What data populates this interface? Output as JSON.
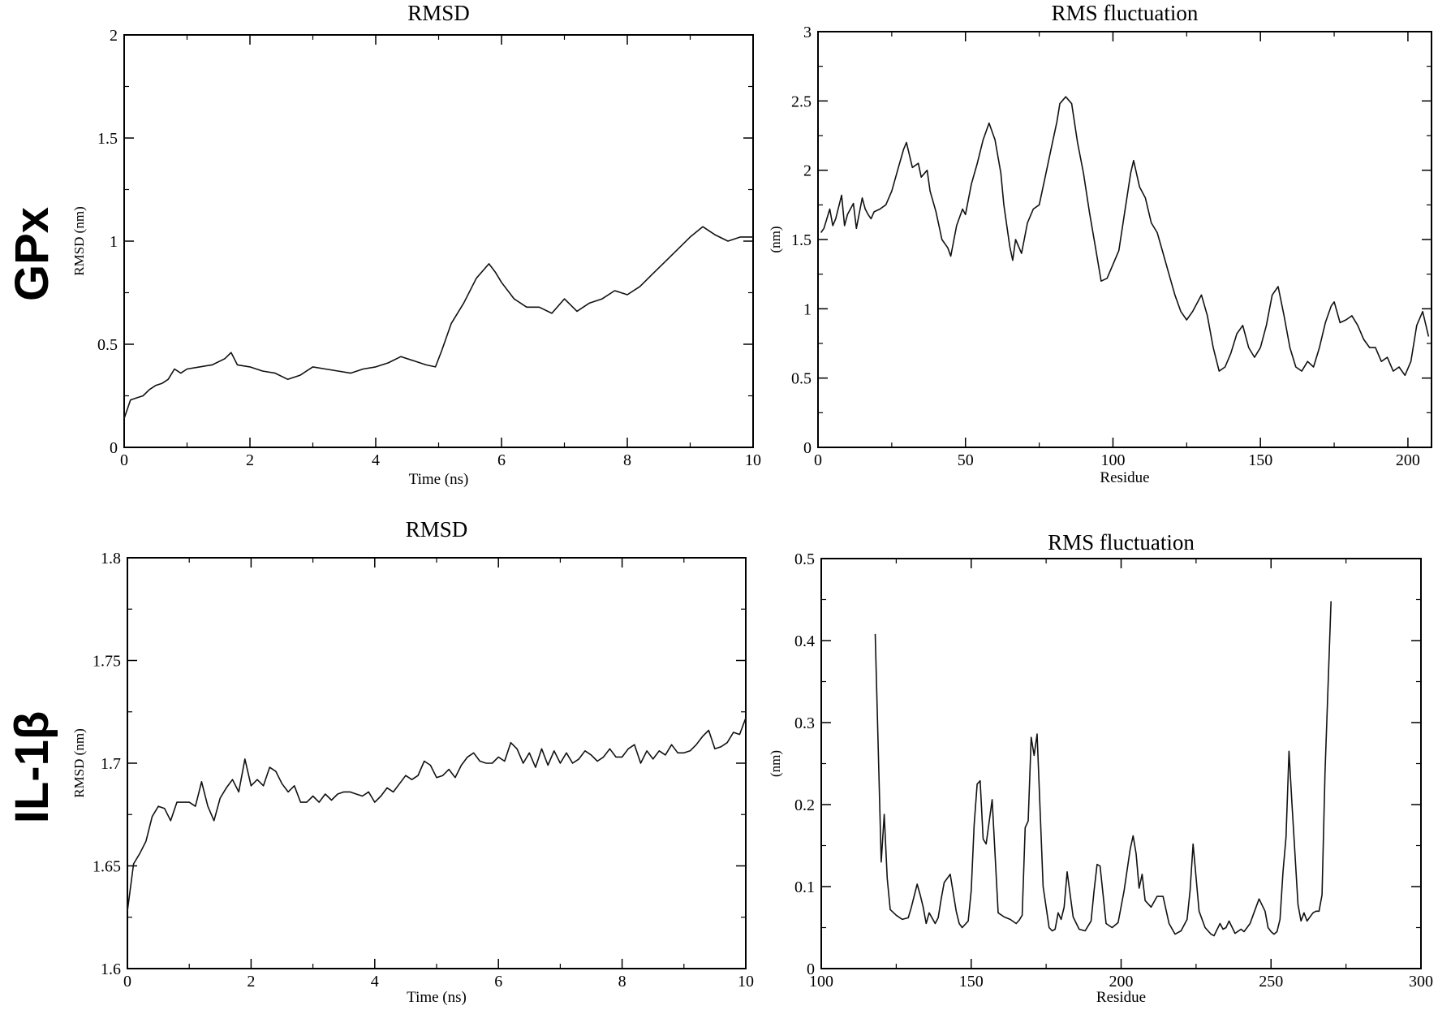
{
  "row_labels": [
    "GPx",
    "IL-1β"
  ],
  "chart_data": [
    {
      "type": "line",
      "title": "RMSD",
      "xlabel": "Time (ns)",
      "ylabel": "RMSD (nm)",
      "xlim": [
        0,
        10
      ],
      "ylim": [
        0,
        2
      ],
      "xticks": [
        0,
        2,
        4,
        6,
        8,
        10
      ],
      "yticks": [
        0,
        0.5,
        1,
        1.5,
        2
      ],
      "tick_labels_x": [
        "0",
        "2",
        "4",
        "6",
        "8",
        "10"
      ],
      "tick_labels_y": [
        "0",
        "0.5",
        "1",
        "1.5",
        "2"
      ],
      "grid": false,
      "series": [
        {
          "x": [
            0,
            0.1,
            0.2,
            0.3,
            0.4,
            0.5,
            0.6,
            0.7,
            0.8,
            0.9,
            1.0,
            1.2,
            1.4,
            1.6,
            1.7,
            1.8,
            2.0,
            2.2,
            2.4,
            2.6,
            2.8,
            3.0,
            3.2,
            3.4,
            3.6,
            3.8,
            4.0,
            4.2,
            4.4,
            4.6,
            4.8,
            4.95,
            5.05,
            5.2,
            5.4,
            5.6,
            5.8,
            5.9,
            6.0,
            6.2,
            6.4,
            6.6,
            6.8,
            7.0,
            7.2,
            7.4,
            7.6,
            7.8,
            8.0,
            8.2,
            8.4,
            8.6,
            8.8,
            9.0,
            9.2,
            9.4,
            9.6,
            9.8,
            10.0
          ],
          "y": [
            0.14,
            0.23,
            0.24,
            0.25,
            0.28,
            0.3,
            0.31,
            0.33,
            0.38,
            0.36,
            0.38,
            0.39,
            0.4,
            0.43,
            0.46,
            0.4,
            0.39,
            0.37,
            0.36,
            0.33,
            0.35,
            0.39,
            0.38,
            0.37,
            0.36,
            0.38,
            0.39,
            0.41,
            0.44,
            0.42,
            0.4,
            0.39,
            0.47,
            0.6,
            0.7,
            0.82,
            0.89,
            0.85,
            0.8,
            0.72,
            0.68,
            0.68,
            0.65,
            0.72,
            0.66,
            0.7,
            0.72,
            0.76,
            0.74,
            0.78,
            0.84,
            0.9,
            0.96,
            1.02,
            1.07,
            1.03,
            1.0,
            1.02,
            1.02
          ]
        }
      ]
    },
    {
      "type": "line",
      "title": "RMS fluctuation",
      "xlabel": "Residue",
      "ylabel": "(nm)",
      "xlim": [
        0,
        208
      ],
      "ylim": [
        0,
        3
      ],
      "xticks": [
        0,
        50,
        100,
        150,
        200
      ],
      "yticks": [
        0,
        0.5,
        1,
        1.5,
        2,
        2.5,
        3
      ],
      "tick_labels_x": [
        "0",
        "50",
        "100",
        "150",
        "200"
      ],
      "tick_labels_y": [
        "0",
        "0.5",
        "1",
        "1.5",
        "2",
        "2.5",
        "3"
      ],
      "grid": false,
      "series": [
        {
          "x": [
            1,
            2,
            4,
            5,
            6,
            8,
            9,
            10,
            12,
            13,
            15,
            16,
            17,
            18,
            19,
            21,
            23,
            25,
            27,
            29,
            30,
            32,
            34,
            35,
            37,
            38,
            40,
            42,
            44,
            45,
            47,
            49,
            50,
            52,
            54,
            56,
            58,
            60,
            62,
            63,
            65,
            66,
            67,
            69,
            71,
            73,
            75,
            77,
            79,
            81,
            82,
            84,
            86,
            88,
            90,
            92,
            94,
            96,
            98,
            100,
            102,
            104,
            106,
            107,
            109,
            111,
            113,
            115,
            117,
            119,
            121,
            123,
            125,
            127,
            130,
            132,
            134,
            136,
            138,
            140,
            142,
            144,
            146,
            148,
            150,
            152,
            154,
            156,
            158,
            160,
            162,
            164,
            166,
            168,
            170,
            172,
            174,
            175,
            177,
            179,
            181,
            183,
            185,
            187,
            189,
            191,
            193,
            195,
            197,
            199,
            201,
            203,
            205,
            207
          ],
          "y": [
            1.55,
            1.58,
            1.72,
            1.6,
            1.65,
            1.82,
            1.6,
            1.68,
            1.76,
            1.58,
            1.8,
            1.72,
            1.68,
            1.65,
            1.7,
            1.72,
            1.75,
            1.85,
            2.0,
            2.15,
            2.2,
            2.02,
            2.05,
            1.95,
            2.0,
            1.85,
            1.7,
            1.5,
            1.44,
            1.38,
            1.6,
            1.72,
            1.68,
            1.9,
            2.05,
            2.22,
            2.34,
            2.22,
            1.98,
            1.75,
            1.45,
            1.35,
            1.5,
            1.4,
            1.62,
            1.72,
            1.75,
            1.95,
            2.15,
            2.35,
            2.48,
            2.53,
            2.48,
            2.2,
            1.98,
            1.7,
            1.45,
            1.2,
            1.22,
            1.32,
            1.42,
            1.7,
            1.98,
            2.07,
            1.88,
            1.8,
            1.62,
            1.55,
            1.4,
            1.25,
            1.1,
            0.98,
            0.92,
            0.98,
            1.1,
            0.95,
            0.72,
            0.55,
            0.58,
            0.68,
            0.82,
            0.88,
            0.72,
            0.65,
            0.72,
            0.88,
            1.1,
            1.16,
            0.95,
            0.72,
            0.58,
            0.55,
            0.62,
            0.58,
            0.72,
            0.9,
            1.02,
            1.05,
            0.9,
            0.92,
            0.95,
            0.88,
            0.78,
            0.72,
            0.72,
            0.62,
            0.65,
            0.55,
            0.58,
            0.52,
            0.62,
            0.88,
            0.98,
            0.8
          ]
        }
      ]
    },
    {
      "type": "line",
      "title": "RMSD",
      "xlabel": "Time (ns)",
      "ylabel": "RMSD (nm)",
      "xlim": [
        0,
        10
      ],
      "ylim": [
        1.6,
        1.8
      ],
      "xticks": [
        0,
        2,
        4,
        6,
        8,
        10
      ],
      "yticks": [
        1.6,
        1.65,
        1.7,
        1.75,
        1.8
      ],
      "tick_labels_x": [
        "0",
        "2",
        "4",
        "6",
        "8",
        "10"
      ],
      "tick_labels_y": [
        "1.6",
        "1.65",
        "1.7",
        "1.75",
        "1.8"
      ],
      "grid": false,
      "series": [
        {
          "x": [
            0,
            0.1,
            0.2,
            0.3,
            0.4,
            0.5,
            0.6,
            0.7,
            0.8,
            0.9,
            1.0,
            1.1,
            1.2,
            1.3,
            1.4,
            1.5,
            1.6,
            1.7,
            1.8,
            1.9,
            2.0,
            2.1,
            2.2,
            2.3,
            2.4,
            2.5,
            2.6,
            2.7,
            2.8,
            2.9,
            3.0,
            3.1,
            3.2,
            3.3,
            3.4,
            3.5,
            3.6,
            3.7,
            3.8,
            3.9,
            4.0,
            4.1,
            4.2,
            4.3,
            4.4,
            4.5,
            4.6,
            4.7,
            4.8,
            4.9,
            5.0,
            5.1,
            5.2,
            5.3,
            5.4,
            5.5,
            5.6,
            5.7,
            5.8,
            5.9,
            6.0,
            6.1,
            6.2,
            6.3,
            6.4,
            6.5,
            6.6,
            6.7,
            6.8,
            6.9,
            7.0,
            7.1,
            7.2,
            7.3,
            7.4,
            7.5,
            7.6,
            7.7,
            7.8,
            7.9,
            8.0,
            8.1,
            8.2,
            8.3,
            8.4,
            8.5,
            8.6,
            8.7,
            8.8,
            8.9,
            9.0,
            9.1,
            9.2,
            9.3,
            9.4,
            9.5,
            9.6,
            9.7,
            9.8,
            9.9,
            10.0
          ],
          "y": [
            1.628,
            1.651,
            1.656,
            1.662,
            1.674,
            1.679,
            1.678,
            1.672,
            1.681,
            1.681,
            1.681,
            1.679,
            1.691,
            1.679,
            1.672,
            1.683,
            1.688,
            1.692,
            1.686,
            1.702,
            1.689,
            1.692,
            1.689,
            1.698,
            1.696,
            1.69,
            1.686,
            1.689,
            1.681,
            1.681,
            1.684,
            1.681,
            1.685,
            1.682,
            1.685,
            1.686,
            1.686,
            1.685,
            1.684,
            1.686,
            1.681,
            1.684,
            1.688,
            1.686,
            1.69,
            1.694,
            1.692,
            1.694,
            1.701,
            1.699,
            1.693,
            1.694,
            1.697,
            1.693,
            1.699,
            1.703,
            1.705,
            1.701,
            1.7,
            1.7,
            1.703,
            1.701,
            1.71,
            1.707,
            1.7,
            1.705,
            1.698,
            1.707,
            1.699,
            1.706,
            1.7,
            1.705,
            1.7,
            1.702,
            1.706,
            1.704,
            1.701,
            1.703,
            1.707,
            1.703,
            1.703,
            1.707,
            1.709,
            1.7,
            1.706,
            1.702,
            1.706,
            1.704,
            1.709,
            1.705,
            1.705,
            1.706,
            1.709,
            1.713,
            1.716,
            1.707,
            1.708,
            1.71,
            1.715,
            1.714,
            1.722
          ]
        }
      ]
    },
    {
      "type": "line",
      "title": "RMS fluctuation",
      "xlabel": "Residue",
      "ylabel": "(nm)",
      "xlim": [
        100,
        300
      ],
      "ylim": [
        0,
        0.5
      ],
      "xticks": [
        100,
        150,
        200,
        250,
        300
      ],
      "yticks": [
        0,
        0.1,
        0.2,
        0.3,
        0.4,
        0.5
      ],
      "tick_labels_x": [
        "100",
        "150",
        "200",
        "250",
        "300"
      ],
      "tick_labels_y": [
        "0",
        "0.1",
        "0.2",
        "0.3",
        "0.4",
        "0.5"
      ],
      "grid": false,
      "series": [
        {
          "x": [
            118,
            120,
            121,
            122,
            123,
            125,
            127,
            129,
            130,
            132,
            133,
            134,
            135,
            136,
            138,
            139,
            140,
            141,
            143,
            145,
            146,
            147,
            149,
            150,
            151,
            152,
            153,
            154,
            155,
            157,
            159,
            161,
            163,
            165,
            166,
            167,
            168,
            169,
            170,
            171,
            172,
            174,
            176,
            177,
            178,
            179,
            180,
            181,
            182,
            184,
            186,
            188,
            190,
            191,
            192,
            193,
            195,
            197,
            199,
            201,
            203,
            204,
            205,
            206,
            207,
            208,
            210,
            212,
            214,
            216,
            218,
            220,
            222,
            223,
            224,
            226,
            228,
            230,
            231,
            233,
            234,
            235,
            236,
            238,
            240,
            241,
            243,
            244,
            246,
            248,
            249,
            250,
            251,
            252,
            253,
            254,
            255,
            256,
            257,
            259,
            260,
            261,
            262,
            264,
            265,
            266,
            267,
            268,
            270
          ],
          "y": [
            0.408,
            0.13,
            0.188,
            0.11,
            0.072,
            0.065,
            0.06,
            0.062,
            0.074,
            0.103,
            0.09,
            0.075,
            0.055,
            0.068,
            0.055,
            0.062,
            0.085,
            0.105,
            0.115,
            0.07,
            0.055,
            0.05,
            0.058,
            0.095,
            0.175,
            0.225,
            0.229,
            0.158,
            0.152,
            0.206,
            0.068,
            0.063,
            0.06,
            0.055,
            0.059,
            0.065,
            0.172,
            0.18,
            0.282,
            0.26,
            0.286,
            0.1,
            0.05,
            0.046,
            0.048,
            0.068,
            0.06,
            0.075,
            0.118,
            0.063,
            0.048,
            0.046,
            0.058,
            0.095,
            0.127,
            0.125,
            0.055,
            0.05,
            0.056,
            0.095,
            0.145,
            0.162,
            0.14,
            0.098,
            0.115,
            0.083,
            0.075,
            0.088,
            0.088,
            0.055,
            0.042,
            0.046,
            0.06,
            0.095,
            0.152,
            0.07,
            0.05,
            0.042,
            0.04,
            0.055,
            0.048,
            0.05,
            0.058,
            0.043,
            0.048,
            0.045,
            0.055,
            0.065,
            0.085,
            0.07,
            0.05,
            0.045,
            0.042,
            0.045,
            0.06,
            0.118,
            0.16,
            0.265,
            0.2,
            0.078,
            0.058,
            0.068,
            0.058,
            0.068,
            0.07,
            0.07,
            0.09,
            0.24,
            0.448
          ]
        }
      ]
    }
  ]
}
